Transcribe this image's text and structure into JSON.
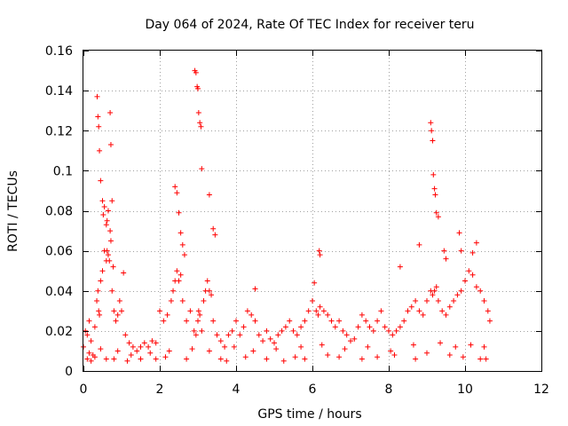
{
  "chart_data": {
    "type": "scatter",
    "title": "Day 064 of 2024, Rate Of TEC Index for receiver teru",
    "xlabel": "GPS time / hours",
    "ylabel": "ROTI / TECUs",
    "xlim": [
      0,
      12
    ],
    "ylim": [
      0,
      0.16
    ],
    "xticks": [
      0,
      2,
      4,
      6,
      8,
      10,
      12
    ],
    "xtick_labels": [
      "0",
      "2",
      "4",
      "6",
      "8",
      "10",
      "12"
    ],
    "yticks": [
      0,
      0.02,
      0.04,
      0.06,
      0.08,
      0.1,
      0.12,
      0.14,
      0.16
    ],
    "ytick_labels": [
      "0",
      "0.02",
      "0.04",
      "0.06",
      "0.08",
      "0.1",
      "0.12",
      "0.14",
      "0.16"
    ],
    "grid": true,
    "marker": "+",
    "color": "#ff0000",
    "series": [
      {
        "name": "ROTI",
        "x": [
          0.0,
          0.05,
          0.1,
          0.15,
          0.2,
          0.3,
          0.35,
          0.38,
          0.4,
          0.42,
          0.45,
          0.5,
          0.55,
          0.6,
          0.62,
          0.65,
          0.7,
          0.72,
          0.75,
          0.8,
          0.85,
          0.9,
          0.95,
          1.0,
          1.1,
          1.2,
          1.3,
          1.4,
          1.5,
          1.6,
          1.7,
          1.8,
          1.9,
          2.0,
          2.1,
          2.2,
          2.3,
          2.35,
          2.4,
          2.45,
          2.5,
          2.55,
          2.6,
          2.7,
          2.8,
          2.9,
          2.95,
          3.0,
          3.02,
          3.05,
          3.1,
          3.15,
          3.2,
          3.25,
          3.3,
          3.35,
          3.4,
          3.5,
          3.6,
          3.7,
          3.8,
          3.9,
          4.0,
          4.1,
          4.2,
          4.3,
          4.4,
          4.5,
          4.6,
          4.7,
          4.8,
          4.9,
          5.0,
          5.1,
          5.2,
          5.3,
          5.4,
          5.5,
          5.6,
          5.7,
          5.8,
          5.9,
          6.0,
          6.1,
          6.15,
          6.2,
          6.3,
          6.4,
          6.5,
          6.6,
          6.7,
          6.8,
          6.9,
          7.0,
          7.1,
          7.2,
          7.3,
          7.4,
          7.5,
          7.6,
          7.7,
          7.8,
          7.9,
          8.0,
          8.1,
          8.2,
          8.3,
          8.4,
          8.5,
          8.6,
          8.7,
          8.8,
          8.9,
          9.0,
          9.1,
          9.15,
          9.2,
          9.25,
          9.3,
          9.4,
          9.5,
          9.6,
          9.7,
          9.8,
          9.9,
          10.0,
          10.1,
          10.2,
          10.3,
          10.4,
          10.5,
          10.6,
          10.65,
          0.36,
          0.38,
          0.4,
          0.42,
          0.45,
          0.5,
          0.52,
          0.55,
          0.6,
          0.62,
          0.65,
          0.68,
          0.7,
          0.72,
          0.75,
          0.78,
          1.05,
          2.4,
          2.45,
          2.5,
          2.55,
          2.6,
          2.65,
          2.92,
          2.95,
          2.98,
          3.0,
          3.02,
          3.05,
          3.08,
          3.1,
          3.3,
          3.4,
          3.45,
          4.5,
          6.05,
          6.18,
          6.2,
          8.3,
          8.8,
          9.1,
          9.12,
          9.15,
          9.17,
          9.2,
          9.22,
          9.25,
          9.3,
          9.45,
          9.5,
          9.85,
          9.9,
          10.2,
          10.3,
          0.1,
          0.2,
          0.25,
          0.3,
          0.6,
          0.8,
          1.15,
          1.5,
          1.9,
          2.15,
          2.7,
          3.6,
          3.75,
          4.25,
          4.8,
          5.25,
          5.55,
          5.8,
          6.4,
          6.7,
          7.3,
          7.7,
          8.15,
          8.7,
          9.0,
          9.6,
          9.95,
          10.4,
          10.55,
          0.15,
          0.45,
          0.9,
          1.25,
          1.75,
          2.25,
          2.85,
          3.3,
          3.95,
          4.45,
          5.05,
          5.7,
          6.25,
          6.85,
          7.45,
          8.05,
          8.65,
          9.35,
          9.75,
          10.15,
          10.5
        ],
        "y": [
          0.012,
          0.02,
          0.018,
          0.025,
          0.015,
          0.022,
          0.035,
          0.04,
          0.03,
          0.028,
          0.045,
          0.05,
          0.06,
          0.055,
          0.075,
          0.08,
          0.07,
          0.065,
          0.04,
          0.03,
          0.025,
          0.028,
          0.035,
          0.03,
          0.018,
          0.014,
          0.012,
          0.01,
          0.012,
          0.014,
          0.012,
          0.015,
          0.014,
          0.03,
          0.025,
          0.028,
          0.035,
          0.04,
          0.045,
          0.05,
          0.045,
          0.048,
          0.035,
          0.025,
          0.03,
          0.02,
          0.018,
          0.025,
          0.03,
          0.028,
          0.02,
          0.035,
          0.04,
          0.045,
          0.04,
          0.038,
          0.025,
          0.018,
          0.015,
          0.012,
          0.018,
          0.02,
          0.025,
          0.018,
          0.022,
          0.03,
          0.028,
          0.025,
          0.018,
          0.015,
          0.02,
          0.016,
          0.014,
          0.018,
          0.02,
          0.022,
          0.025,
          0.02,
          0.018,
          0.022,
          0.025,
          0.03,
          0.035,
          0.03,
          0.028,
          0.032,
          0.03,
          0.028,
          0.025,
          0.022,
          0.025,
          0.02,
          0.018,
          0.015,
          0.016,
          0.022,
          0.028,
          0.025,
          0.022,
          0.02,
          0.025,
          0.03,
          0.022,
          0.02,
          0.018,
          0.02,
          0.022,
          0.025,
          0.03,
          0.032,
          0.035,
          0.03,
          0.028,
          0.035,
          0.04,
          0.038,
          0.04,
          0.042,
          0.035,
          0.03,
          0.028,
          0.032,
          0.035,
          0.038,
          0.04,
          0.045,
          0.05,
          0.048,
          0.042,
          0.04,
          0.035,
          0.03,
          0.025,
          0.137,
          0.127,
          0.122,
          0.11,
          0.095,
          0.085,
          0.078,
          0.082,
          0.073,
          0.06,
          0.058,
          0.055,
          0.129,
          0.113,
          0.085,
          0.052,
          0.049,
          0.092,
          0.089,
          0.079,
          0.069,
          0.063,
          0.058,
          0.15,
          0.149,
          0.142,
          0.141,
          0.129,
          0.124,
          0.122,
          0.101,
          0.088,
          0.071,
          0.068,
          0.041,
          0.044,
          0.06,
          0.058,
          0.052,
          0.063,
          0.124,
          0.12,
          0.115,
          0.098,
          0.091,
          0.088,
          0.079,
          0.077,
          0.06,
          0.056,
          0.069,
          0.06,
          0.059,
          0.064,
          0.006,
          0.005,
          0.008,
          0.007,
          0.006,
          0.006,
          0.005,
          0.006,
          0.006,
          0.007,
          0.006,
          0.006,
          0.005,
          0.007,
          0.006,
          0.005,
          0.007,
          0.006,
          0.008,
          0.007,
          0.006,
          0.007,
          0.008,
          0.006,
          0.009,
          0.008,
          0.007,
          0.006,
          0.006,
          0.009,
          0.011,
          0.01,
          0.008,
          0.009,
          0.01,
          0.011,
          0.01,
          0.012,
          0.01,
          0.011,
          0.012,
          0.013,
          0.011,
          0.012,
          0.01,
          0.013,
          0.014,
          0.012,
          0.013,
          0.012
        ]
      }
    ]
  }
}
